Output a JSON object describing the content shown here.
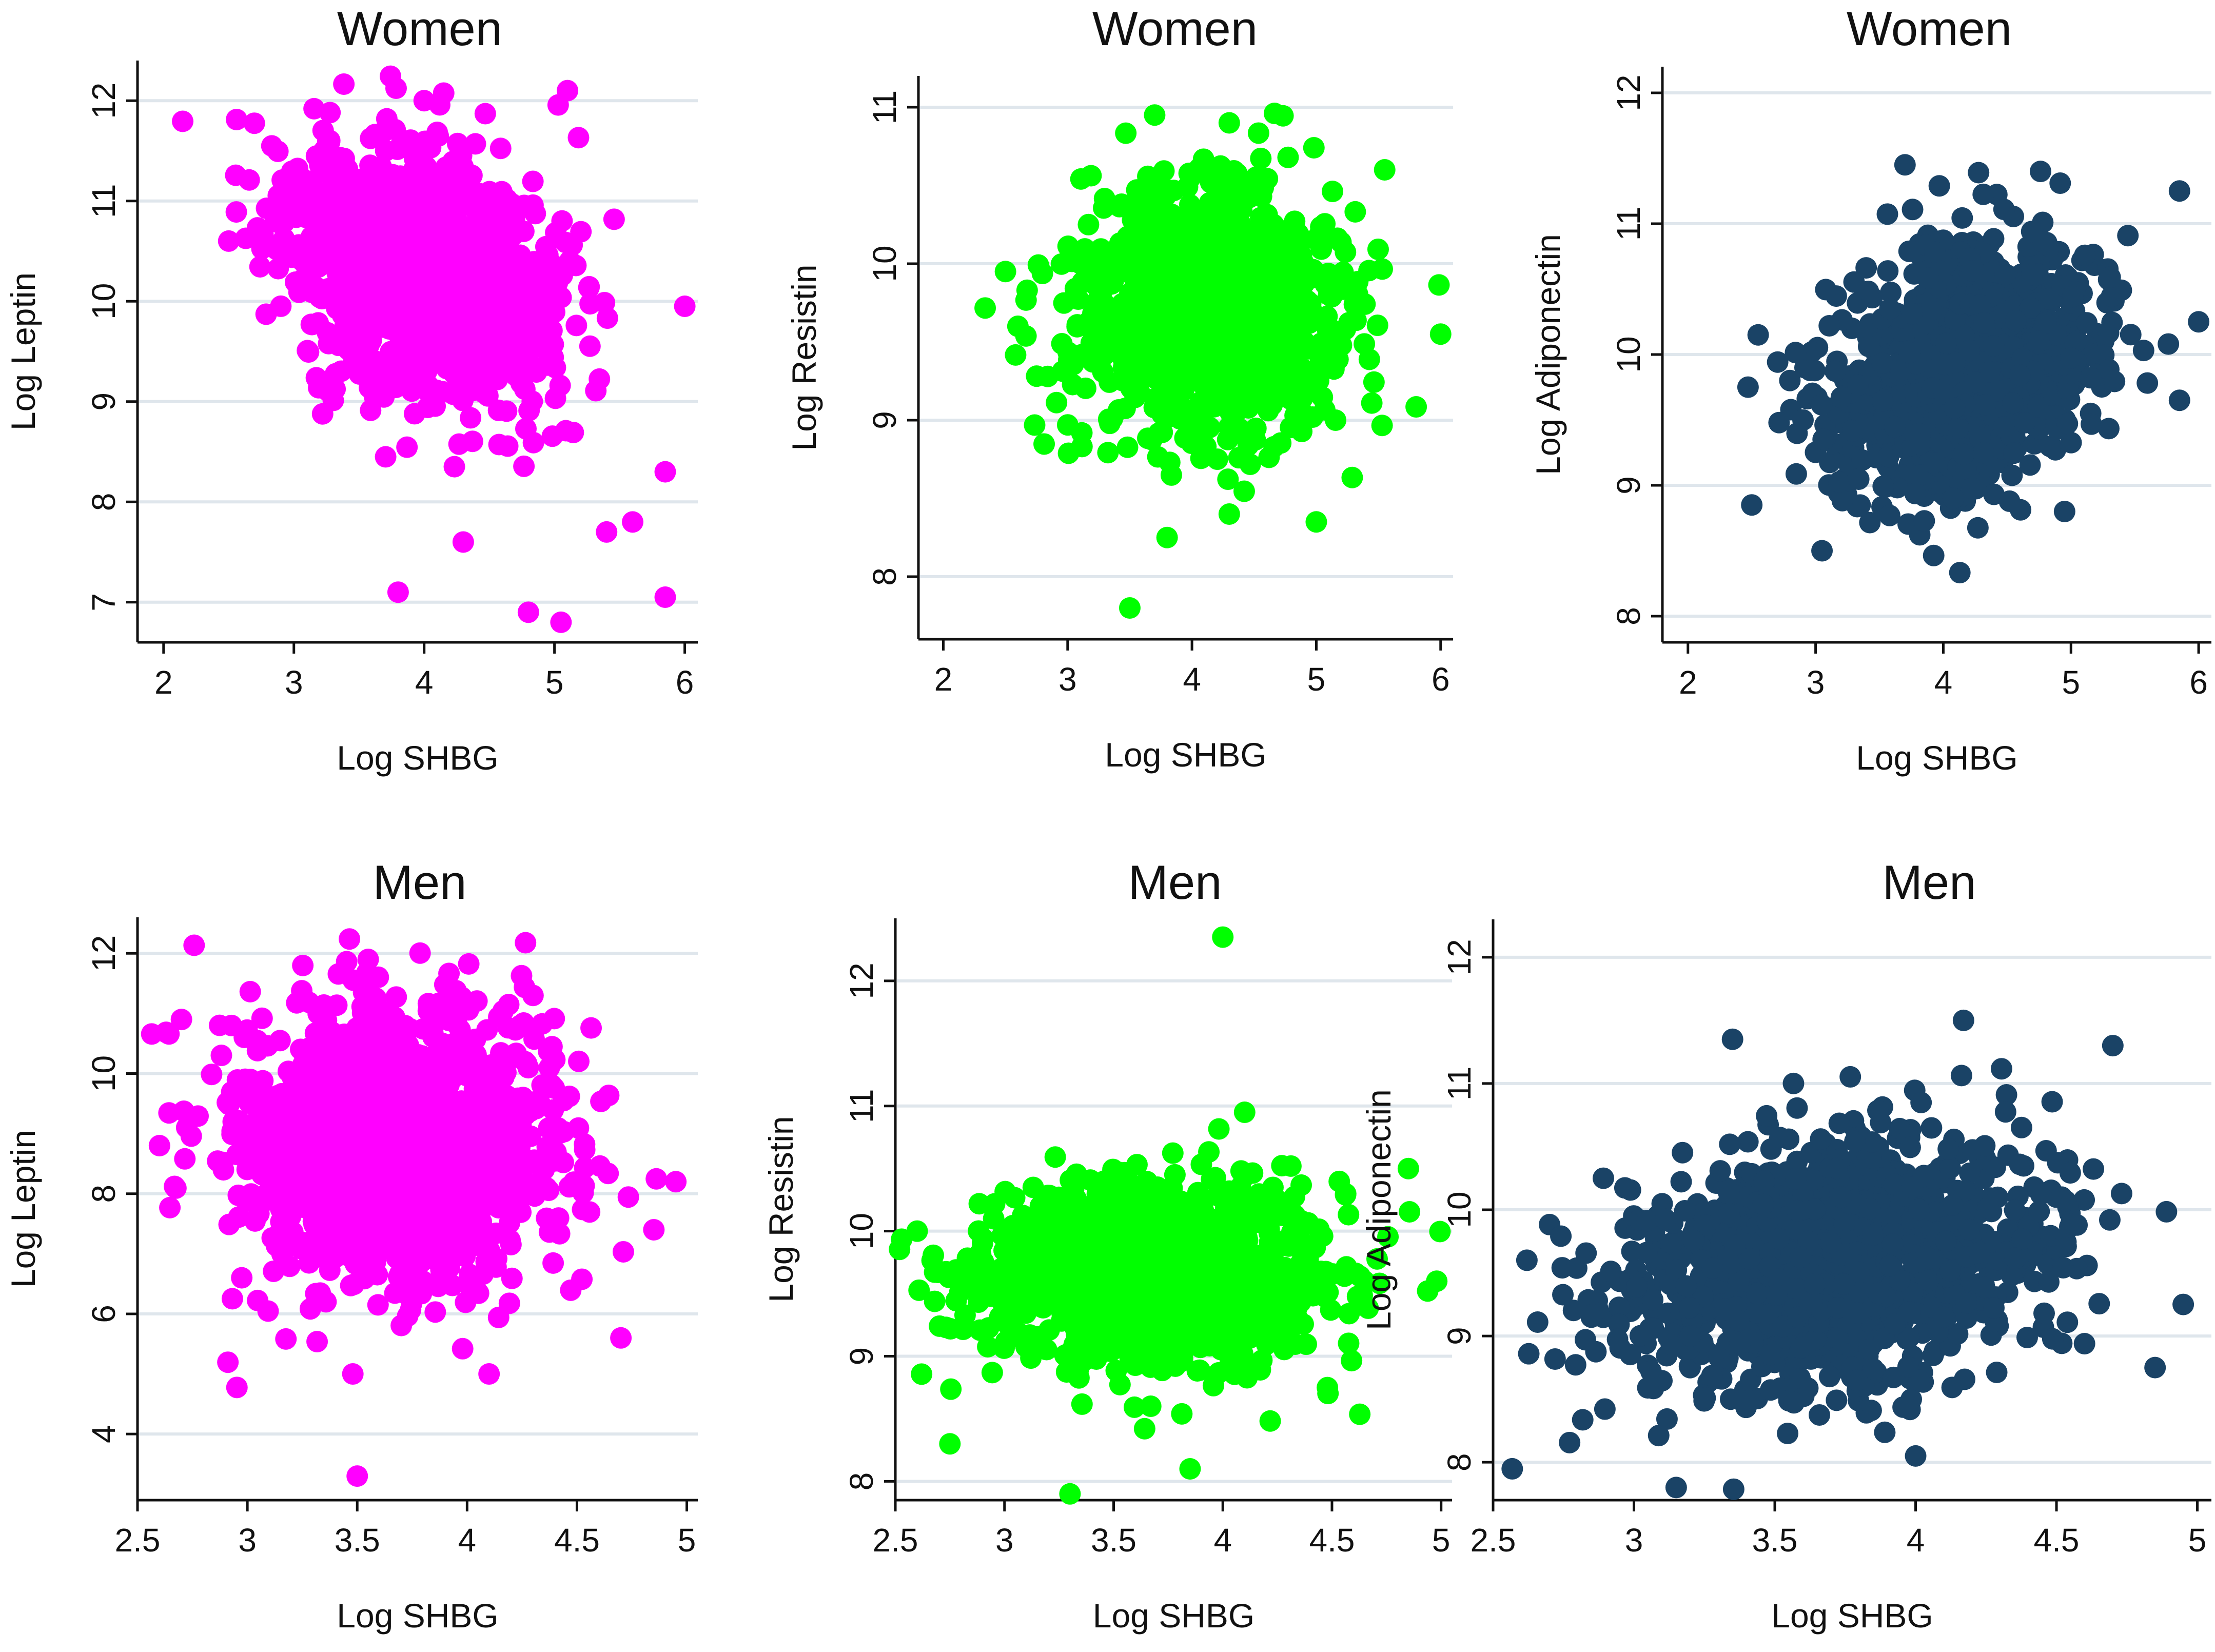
{
  "chart_data": [
    {
      "type": "scatter",
      "title": "Women",
      "xlabel": "Log SHBG",
      "ylabel": "Log Leptin",
      "color": "#ff00ff",
      "xlim": [
        1.8,
        6.1
      ],
      "ylim": [
        6.6,
        12.4
      ],
      "xticks": [
        2,
        3,
        4,
        5,
        6
      ],
      "yticks": [
        7,
        8,
        9,
        10,
        11,
        12
      ],
      "grid": true,
      "cloud": {
        "n": 1300,
        "mean": [
          3.95,
          10.3
        ],
        "sd": [
          0.52,
          0.62
        ],
        "corr": -0.3,
        "seed": 11
      },
      "points": [
        {
          "x": 2.5,
          "y": 10.6
        },
        {
          "x": 3.8,
          "y": 7.1
        },
        {
          "x": 4.3,
          "y": 7.6
        },
        {
          "x": 5.05,
          "y": 6.8
        },
        {
          "x": 5.85,
          "y": 7.05
        },
        {
          "x": 5.1,
          "y": 12.1
        },
        {
          "x": 4.0,
          "y": 12.0
        },
        {
          "x": 6.0,
          "y": 9.95
        },
        {
          "x": 5.85,
          "y": 8.3
        },
        {
          "x": 4.8,
          "y": 6.9
        },
        {
          "x": 5.4,
          "y": 7.7
        },
        {
          "x": 5.6,
          "y": 7.8
        }
      ]
    },
    {
      "type": "scatter",
      "title": "Women",
      "xlabel": "Log SHBG",
      "ylabel": "Log Resistin",
      "color": "#00ff00",
      "xlim": [
        1.8,
        6.1
      ],
      "ylim": [
        7.6,
        11.2
      ],
      "xticks": [
        2,
        3,
        4,
        5,
        6
      ],
      "yticks": [
        8,
        9,
        10,
        11
      ],
      "grid": true,
      "cloud": {
        "n": 1300,
        "mean": [
          4.1,
          9.7
        ],
        "sd": [
          0.5,
          0.38
        ],
        "corr": 0.0,
        "seed": 23
      },
      "points": [
        {
          "x": 3.5,
          "y": 7.8
        },
        {
          "x": 3.8,
          "y": 8.25
        },
        {
          "x": 2.5,
          "y": 9.95
        },
        {
          "x": 2.6,
          "y": 9.6
        },
        {
          "x": 6.0,
          "y": 9.55
        },
        {
          "x": 3.7,
          "y": 10.95
        },
        {
          "x": 4.3,
          "y": 10.9
        },
        {
          "x": 5.55,
          "y": 10.6
        },
        {
          "x": 5.0,
          "y": 8.35
        },
        {
          "x": 4.3,
          "y": 8.4
        }
      ]
    },
    {
      "type": "scatter",
      "title": "Women",
      "xlabel": "Log SHBG",
      "ylabel": "Log Adiponectin",
      "color": "#1a4366",
      "xlim": [
        1.8,
        6.1
      ],
      "ylim": [
        7.8,
        12.2
      ],
      "xticks": [
        2,
        3,
        4,
        5,
        6
      ],
      "yticks": [
        8,
        9,
        10,
        11,
        12
      ],
      "grid": true,
      "cloud": {
        "n": 1300,
        "mean": [
          4.15,
          9.9
        ],
        "sd": [
          0.5,
          0.45
        ],
        "corr": 0.3,
        "seed": 37
      },
      "points": [
        {
          "x": 2.5,
          "y": 8.85
        },
        {
          "x": 2.55,
          "y": 10.15
        },
        {
          "x": 6.0,
          "y": 10.25
        },
        {
          "x": 5.85,
          "y": 11.25
        },
        {
          "x": 5.85,
          "y": 9.65
        },
        {
          "x": 3.7,
          "y": 11.45
        },
        {
          "x": 4.95,
          "y": 8.8
        },
        {
          "x": 3.05,
          "y": 8.5
        }
      ]
    },
    {
      "type": "scatter",
      "title": "Men",
      "xlabel": "Log SHBG",
      "ylabel": "Log Leptin",
      "color": "#ff00ff",
      "xlim": [
        2.5,
        5.05
      ],
      "ylim": [
        2.9,
        12.6
      ],
      "xticks": [
        2.5,
        3,
        3.5,
        4,
        4.5,
        5
      ],
      "yticks": [
        4,
        6,
        8,
        10,
        12
      ],
      "grid": true,
      "cloud": {
        "n": 1300,
        "mean": [
          3.68,
          8.8
        ],
        "sd": [
          0.36,
          1.2
        ],
        "corr": 0.0,
        "seed": 41
      },
      "points": [
        {
          "x": 3.5,
          "y": 3.3
        },
        {
          "x": 3.48,
          "y": 5.0
        },
        {
          "x": 4.1,
          "y": 5.0
        },
        {
          "x": 3.55,
          "y": 11.9
        },
        {
          "x": 2.7,
          "y": 10.9
        },
        {
          "x": 4.95,
          "y": 8.2
        },
        {
          "x": 4.85,
          "y": 7.4
        },
        {
          "x": 4.7,
          "y": 5.6
        },
        {
          "x": 4.3,
          "y": 11.3
        },
        {
          "x": 2.6,
          "y": 8.8
        }
      ]
    },
    {
      "type": "scatter",
      "title": "Men",
      "xlabel": "Log SHBG",
      "ylabel": "Log Resistin",
      "color": "#00ff00",
      "xlim": [
        2.5,
        5.05
      ],
      "ylim": [
        7.85,
        12.5
      ],
      "xticks": [
        2.5,
        3,
        3.5,
        4,
        4.5,
        5
      ],
      "yticks": [
        8,
        9,
        10,
        11,
        12
      ],
      "grid": true,
      "cloud": {
        "n": 1300,
        "mean": [
          3.7,
          9.65
        ],
        "sd": [
          0.38,
          0.36
        ],
        "corr": 0.0,
        "seed": 53
      },
      "points": [
        {
          "x": 4.0,
          "y": 12.35
        },
        {
          "x": 3.3,
          "y": 7.9
        },
        {
          "x": 2.75,
          "y": 8.3
        },
        {
          "x": 3.85,
          "y": 8.1
        },
        {
          "x": 4.98,
          "y": 9.6
        },
        {
          "x": 2.6,
          "y": 10.0
        },
        {
          "x": 4.1,
          "y": 10.95
        },
        {
          "x": 4.85,
          "y": 10.5
        }
      ]
    },
    {
      "type": "scatter",
      "title": "Men",
      "xlabel": "Log SHBG",
      "ylabel": "Log Adiponectin",
      "color": "#1a4366",
      "xlim": [
        2.5,
        5.05
      ],
      "ylim": [
        7.7,
        12.3
      ],
      "xticks": [
        2.5,
        3,
        3.5,
        4,
        4.5,
        5
      ],
      "yticks": [
        8,
        9,
        10,
        11,
        12
      ],
      "grid": true,
      "cloud": {
        "n": 1300,
        "mean": [
          3.72,
          9.6
        ],
        "sd": [
          0.38,
          0.48
        ],
        "corr": 0.3,
        "seed": 67
      },
      "points": [
        {
          "x": 3.15,
          "y": 7.8
        },
        {
          "x": 4.0,
          "y": 8.05
        },
        {
          "x": 4.17,
          "y": 11.5
        },
        {
          "x": 3.35,
          "y": 11.35
        },
        {
          "x": 4.7,
          "y": 11.3
        },
        {
          "x": 4.95,
          "y": 9.25
        },
        {
          "x": 4.85,
          "y": 8.75
        },
        {
          "x": 2.62,
          "y": 9.6
        }
      ]
    }
  ]
}
